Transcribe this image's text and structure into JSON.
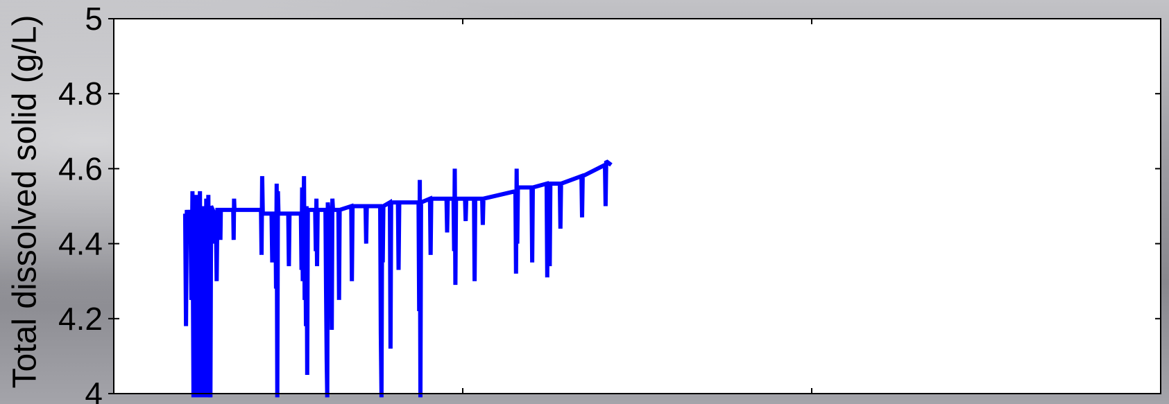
{
  "chart_data": {
    "type": "line",
    "title": "",
    "xlabel": "",
    "ylabel": "Total dissolved solid (g/L)",
    "ylim": [
      4,
      5
    ],
    "yticks": [
      "4",
      "4.2",
      "4.4",
      "4.6",
      "4.8",
      "5"
    ],
    "xlim": [
      0,
      3
    ],
    "xtick_labels": [],
    "grid": false,
    "colors": {
      "series": "#0000ff",
      "axes": "#000000",
      "plot_bg": "#ffffff"
    },
    "series": [
      {
        "values": [
          [
            0.2045,
            4.48
          ],
          [
            0.207,
            4.18
          ],
          [
            0.2093,
            4.49
          ],
          [
            0.2115,
            4.42
          ],
          [
            0.214,
            4.49
          ],
          [
            0.2165,
            4.4
          ],
          [
            0.2195,
            4.49
          ],
          [
            0.2225,
            4.25
          ],
          [
            0.2255,
            4.54
          ],
          [
            0.2285,
            3.99
          ],
          [
            0.231,
            4.5
          ],
          [
            0.2335,
            4.28
          ],
          [
            0.236,
            4.53
          ],
          [
            0.239,
            3.99
          ],
          [
            0.2415,
            4.52
          ],
          [
            0.244,
            4.3
          ],
          [
            0.247,
            4.54
          ],
          [
            0.25,
            3.99
          ],
          [
            0.253,
            4.5
          ],
          [
            0.256,
            4.32
          ],
          [
            0.259,
            4.48
          ],
          [
            0.262,
            3.99
          ],
          [
            0.265,
            4.52
          ],
          [
            0.268,
            3.99
          ],
          [
            0.271,
            4.53
          ],
          [
            0.274,
            4.1
          ],
          [
            0.277,
            3.99
          ],
          [
            0.279,
            4.5
          ],
          [
            0.2885,
            4.48
          ],
          [
            0.2905,
            4.4
          ],
          [
            0.2925,
            4.48
          ],
          [
            0.2948,
            4.3
          ],
          [
            0.297,
            4.49
          ],
          [
            0.3043,
            4.49
          ],
          [
            0.3055,
            4.41
          ],
          [
            0.3068,
            4.49
          ],
          [
            0.3423,
            4.49
          ],
          [
            0.3435,
            4.41
          ],
          [
            0.3448,
            4.52
          ],
          [
            0.346,
            4.49
          ],
          [
            0.4218,
            4.49
          ],
          [
            0.4235,
            4.37
          ],
          [
            0.4253,
            4.58
          ],
          [
            0.427,
            4.48
          ],
          [
            0.452,
            4.48
          ],
          [
            0.454,
            4.35
          ],
          [
            0.456,
            4.48
          ],
          [
            0.4632,
            4.48
          ],
          [
            0.465,
            4.28
          ],
          [
            0.4668,
            4.56
          ],
          [
            0.4685,
            3.99
          ],
          [
            0.4703,
            4.54
          ],
          [
            0.472,
            4.48
          ],
          [
            0.5,
            4.48
          ],
          [
            0.5017,
            4.34
          ],
          [
            0.5035,
            4.48
          ],
          [
            0.5362,
            4.48
          ],
          [
            0.538,
            4.33
          ],
          [
            0.5398,
            4.55
          ],
          [
            0.5416,
            4.3
          ],
          [
            0.5434,
            4.45
          ],
          [
            0.5452,
            4.58
          ],
          [
            0.547,
            4.25
          ],
          [
            0.5488,
            4.48
          ],
          [
            0.5506,
            4.18
          ],
          [
            0.5524,
            4.5
          ],
          [
            0.5542,
            4.05
          ],
          [
            0.556,
            4.49
          ],
          [
            0.5771,
            4.49
          ],
          [
            0.5789,
            4.38
          ],
          [
            0.5807,
            4.52
          ],
          [
            0.5825,
            4.34
          ],
          [
            0.5843,
            4.49
          ],
          [
            0.6066,
            4.49
          ],
          [
            0.6084,
            4.27
          ],
          [
            0.6102,
            4.09
          ],
          [
            0.6118,
            3.99
          ],
          [
            0.6133,
            4.51
          ],
          [
            0.6151,
            4.49
          ],
          [
            0.621,
            4.49
          ],
          [
            0.6228,
            4.35
          ],
          [
            0.6246,
            4.17
          ],
          [
            0.6264,
            4.52
          ],
          [
            0.6282,
            4.49
          ],
          [
            0.6437,
            4.49
          ],
          [
            0.6455,
            4.25
          ],
          [
            0.6473,
            4.49
          ],
          [
            0.6806,
            4.5
          ],
          [
            0.6824,
            4.3
          ],
          [
            0.6842,
            4.5
          ],
          [
            0.7215,
            4.5
          ],
          [
            0.7233,
            4.4
          ],
          [
            0.7251,
            4.5
          ],
          [
            0.7635,
            4.5
          ],
          [
            0.7653,
            4.16
          ],
          [
            0.7671,
            3.99
          ],
          [
            0.7689,
            4.5
          ],
          [
            0.7707,
            4.35
          ],
          [
            0.7725,
            4.5
          ],
          [
            0.7913,
            4.51
          ],
          [
            0.7931,
            4.12
          ],
          [
            0.7949,
            4.51
          ],
          [
            0.8144,
            4.51
          ],
          [
            0.8162,
            4.33
          ],
          [
            0.818,
            4.51
          ],
          [
            0.8733,
            4.51
          ],
          [
            0.8751,
            4.22
          ],
          [
            0.8769,
            4.57
          ],
          [
            0.8787,
            3.99
          ],
          [
            0.8805,
            4.51
          ],
          [
            0.9061,
            4.52
          ],
          [
            0.9079,
            4.37
          ],
          [
            0.9097,
            4.52
          ],
          [
            0.9535,
            4.52
          ],
          [
            0.9553,
            4.43
          ],
          [
            0.9571,
            4.52
          ],
          [
            0.9736,
            4.52
          ],
          [
            0.9754,
            4.38
          ],
          [
            0.9772,
            4.6
          ],
          [
            0.979,
            4.29
          ],
          [
            0.9808,
            4.52
          ],
          [
            1.0065,
            4.52
          ],
          [
            1.0083,
            4.46
          ],
          [
            1.0101,
            4.52
          ],
          [
            1.0322,
            4.52
          ],
          [
            1.034,
            4.3
          ],
          [
            1.0358,
            4.52
          ],
          [
            1.0557,
            4.52
          ],
          [
            1.0575,
            4.45
          ],
          [
            1.0593,
            4.52
          ],
          [
            1.1508,
            4.54
          ],
          [
            1.1526,
            4.32
          ],
          [
            1.1544,
            4.6
          ],
          [
            1.1562,
            4.4
          ],
          [
            1.158,
            4.55
          ],
          [
            1.1972,
            4.55
          ],
          [
            1.199,
            4.35
          ],
          [
            1.2008,
            4.55
          ],
          [
            1.2403,
            4.56
          ],
          [
            1.2421,
            4.31
          ],
          [
            1.2439,
            4.56
          ],
          [
            1.2457,
            4.38
          ],
          [
            1.2475,
            4.56
          ],
          [
            1.2493,
            4.34
          ],
          [
            1.2511,
            4.56
          ],
          [
            1.2781,
            4.56
          ],
          [
            1.2799,
            4.44
          ],
          [
            1.2817,
            4.56
          ],
          [
            1.3401,
            4.58
          ],
          [
            1.3419,
            4.47
          ],
          [
            1.3437,
            4.58
          ],
          [
            1.4075,
            4.61
          ],
          [
            1.4093,
            4.5
          ],
          [
            1.4111,
            4.62
          ],
          [
            1.4254,
            4.61
          ]
        ]
      }
    ]
  }
}
